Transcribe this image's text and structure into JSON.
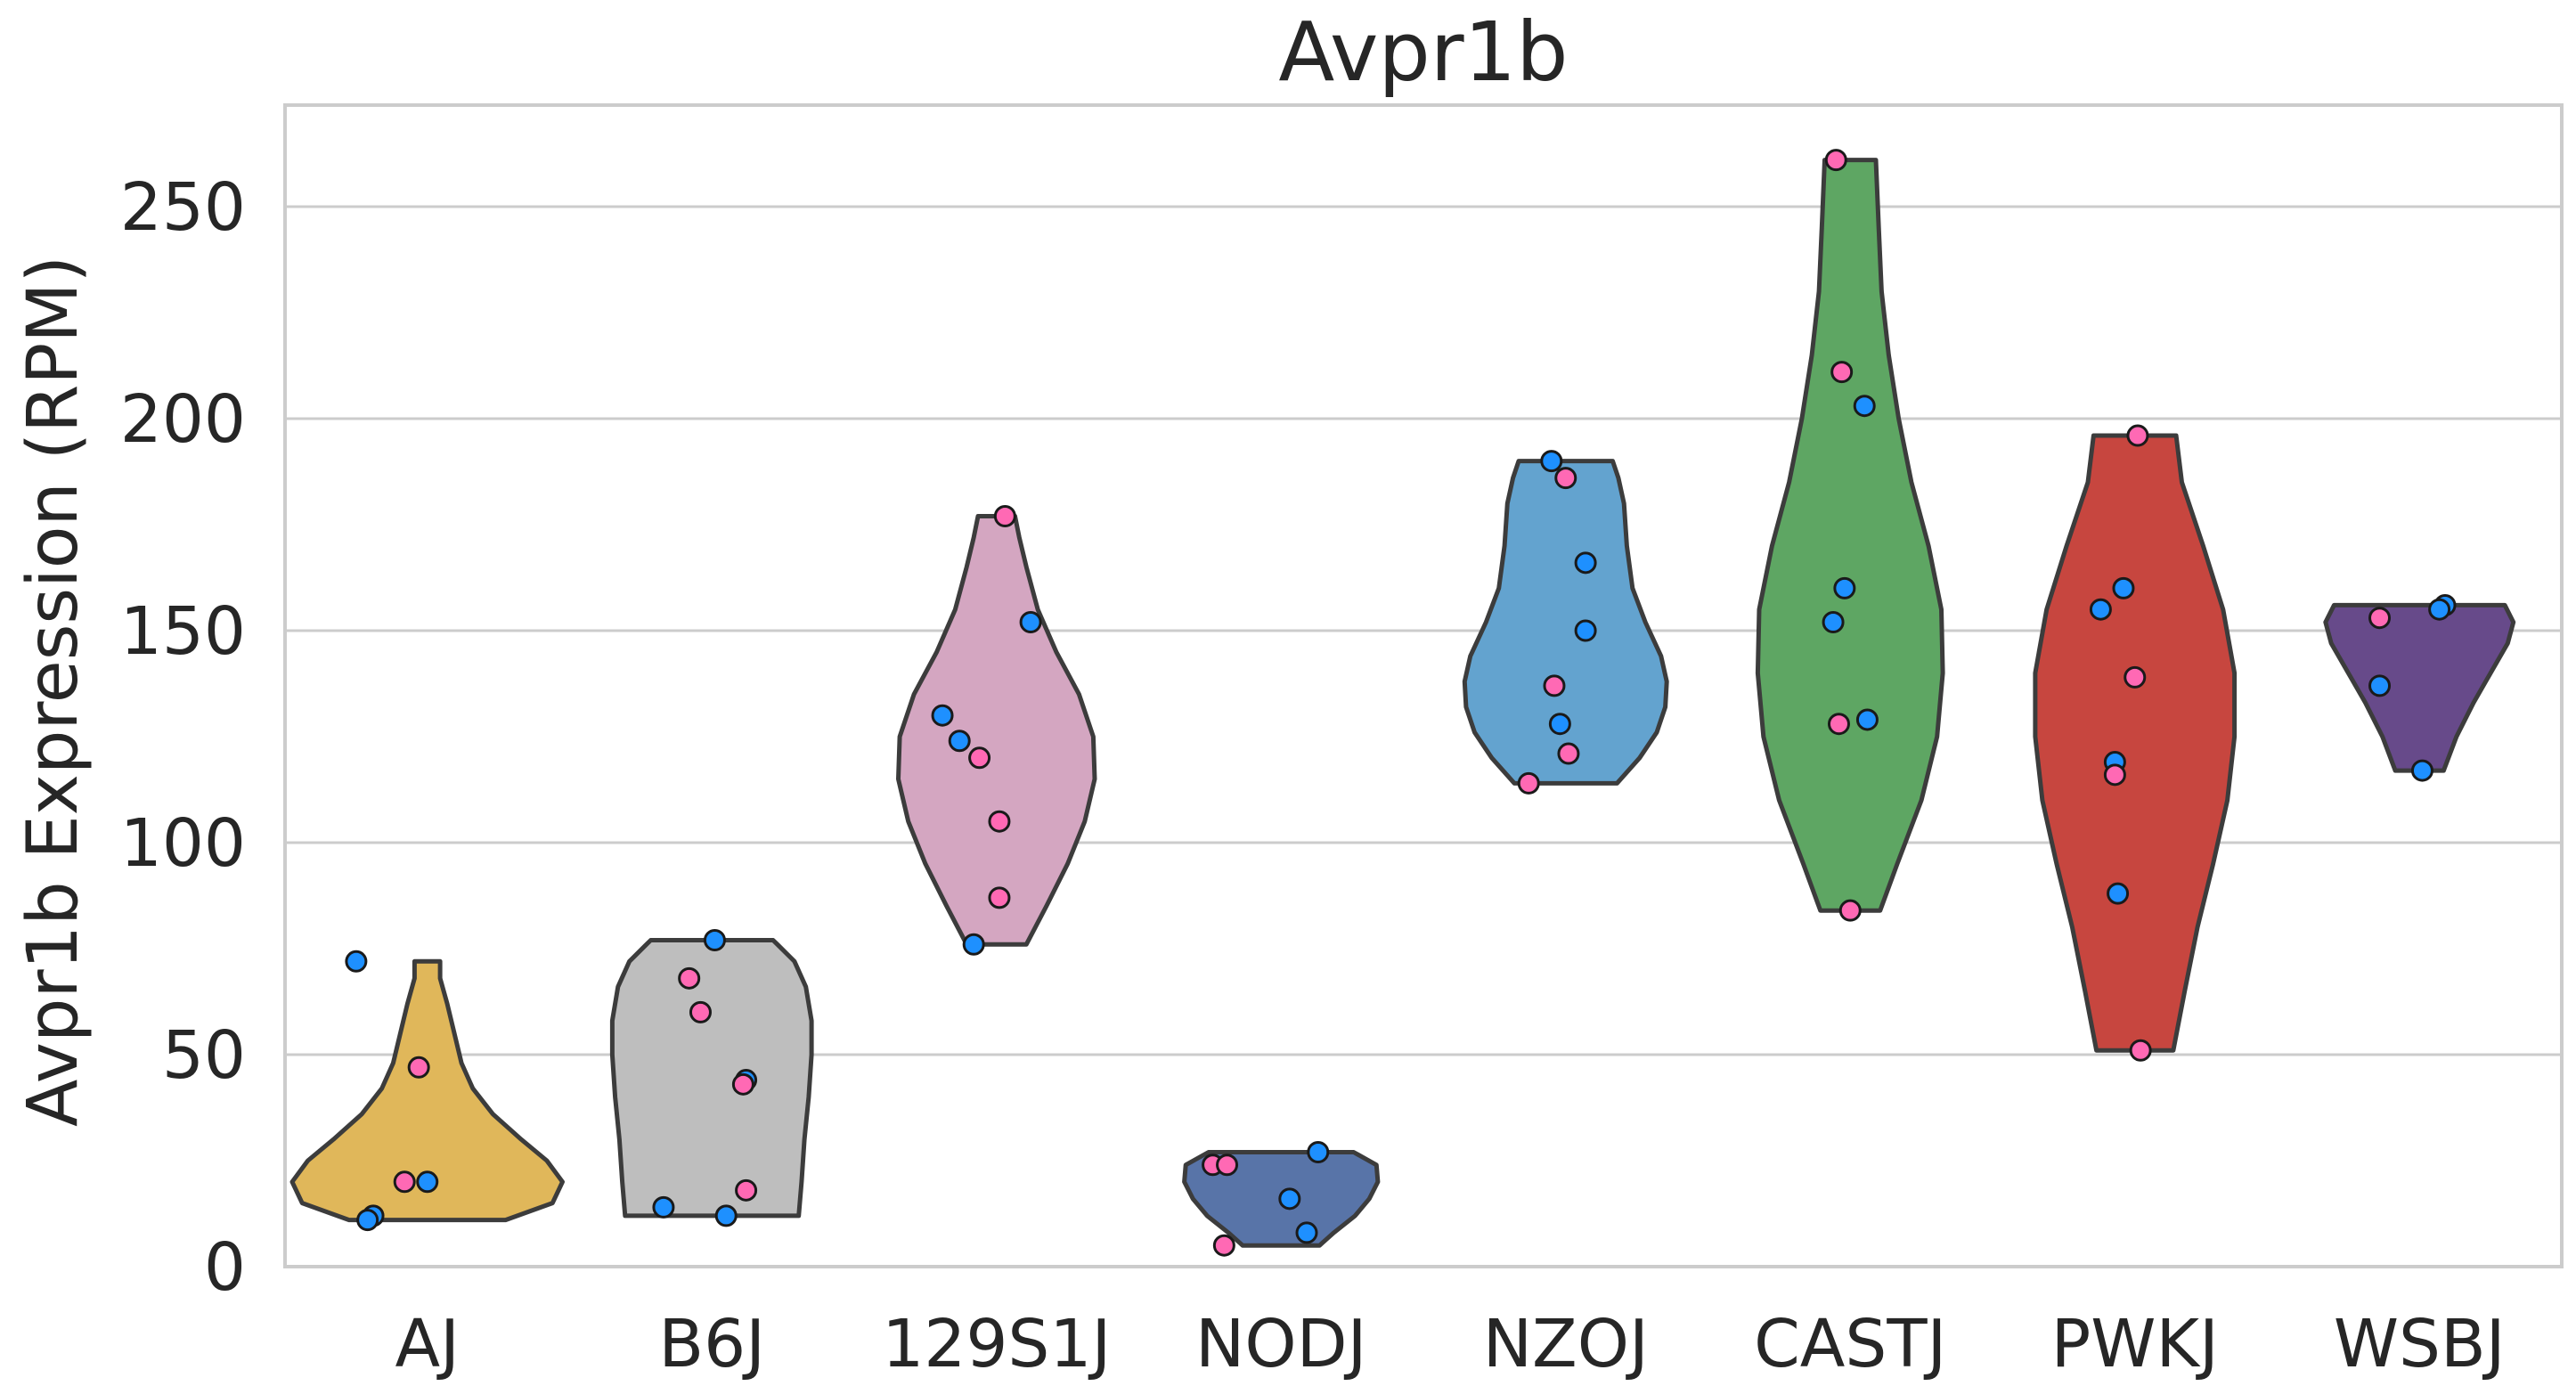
{
  "chart_data": {
    "type": "violin",
    "title": "Avpr1b",
    "ylabel": "Avpr1b Expression (RPM)",
    "xlabel": "",
    "ylim": [
      0,
      274
    ],
    "yticks": [
      0,
      50,
      100,
      150,
      200,
      250
    ],
    "grid": true,
    "legend": "none",
    "colors": {
      "female_point": "#ff69b4",
      "male_point": "#1e90ff"
    },
    "categories": [
      {
        "name": "AJ",
        "color": "#e0b75a",
        "min": 11,
        "max": 72,
        "shape": [
          [
            11,
            0.55
          ],
          [
            15,
            0.88
          ],
          [
            20,
            0.95
          ],
          [
            25,
            0.84
          ],
          [
            30,
            0.66
          ],
          [
            36,
            0.46
          ],
          [
            42,
            0.32
          ],
          [
            48,
            0.24
          ],
          [
            55,
            0.19
          ],
          [
            62,
            0.14
          ],
          [
            68,
            0.09
          ],
          [
            72,
            0.09
          ]
        ],
        "points": [
          {
            "dx": -0.25,
            "y": 72,
            "group": "male"
          },
          {
            "dx": -0.03,
            "y": 47,
            "group": "female"
          },
          {
            "dx": -0.08,
            "y": 20,
            "group": "female"
          },
          {
            "dx": 0.0,
            "y": 20,
            "group": "male"
          },
          {
            "dx": -0.19,
            "y": 12,
            "group": "male"
          },
          {
            "dx": -0.21,
            "y": 11,
            "group": "male"
          }
        ]
      },
      {
        "name": "B6J",
        "color": "#bebebe",
        "min": 12,
        "max": 77,
        "shape": [
          [
            12,
            0.61
          ],
          [
            20,
            0.63
          ],
          [
            30,
            0.65
          ],
          [
            40,
            0.68
          ],
          [
            50,
            0.7
          ],
          [
            58,
            0.7
          ],
          [
            66,
            0.66
          ],
          [
            72,
            0.58
          ],
          [
            76,
            0.46
          ],
          [
            77,
            0.43
          ]
        ],
        "points": [
          {
            "dx": 0.01,
            "y": 77,
            "group": "male"
          },
          {
            "dx": -0.08,
            "y": 68,
            "group": "female"
          },
          {
            "dx": -0.04,
            "y": 60,
            "group": "female"
          },
          {
            "dx": 0.12,
            "y": 44,
            "group": "male"
          },
          {
            "dx": 0.11,
            "y": 43,
            "group": "female"
          },
          {
            "dx": 0.12,
            "y": 18,
            "group": "female"
          },
          {
            "dx": -0.17,
            "y": 14,
            "group": "male"
          },
          {
            "dx": 0.05,
            "y": 12,
            "group": "male"
          }
        ]
      },
      {
        "name": "129S1J",
        "color": "#d4a6c1",
        "min": 76,
        "max": 177,
        "shape": [
          [
            76,
            0.21
          ],
          [
            85,
            0.35
          ],
          [
            95,
            0.5
          ],
          [
            105,
            0.62
          ],
          [
            115,
            0.69
          ],
          [
            125,
            0.68
          ],
          [
            135,
            0.58
          ],
          [
            145,
            0.42
          ],
          [
            155,
            0.29
          ],
          [
            165,
            0.21
          ],
          [
            172,
            0.16
          ],
          [
            177,
            0.13
          ]
        ],
        "points": [
          {
            "dx": 0.03,
            "y": 177,
            "group": "female"
          },
          {
            "dx": 0.12,
            "y": 152,
            "group": "male"
          },
          {
            "dx": -0.19,
            "y": 130,
            "group": "male"
          },
          {
            "dx": -0.13,
            "y": 124,
            "group": "male"
          },
          {
            "dx": -0.06,
            "y": 120,
            "group": "female"
          },
          {
            "dx": 0.01,
            "y": 105,
            "group": "female"
          },
          {
            "dx": 0.01,
            "y": 87,
            "group": "female"
          },
          {
            "dx": -0.08,
            "y": 76,
            "group": "male"
          }
        ]
      },
      {
        "name": "NODJ",
        "color": "#5874a8",
        "min": 5,
        "max": 27,
        "shape": [
          [
            5,
            0.27
          ],
          [
            8,
            0.37
          ],
          [
            12,
            0.52
          ],
          [
            16,
            0.62
          ],
          [
            20,
            0.68
          ],
          [
            24,
            0.67
          ],
          [
            27,
            0.51
          ]
        ],
        "points": [
          {
            "dx": 0.13,
            "y": 27,
            "group": "male"
          },
          {
            "dx": -0.24,
            "y": 24,
            "group": "female"
          },
          {
            "dx": -0.19,
            "y": 24,
            "group": "female"
          },
          {
            "dx": 0.03,
            "y": 16,
            "group": "male"
          },
          {
            "dx": 0.09,
            "y": 8,
            "group": "male"
          },
          {
            "dx": -0.2,
            "y": 5,
            "group": "female"
          }
        ]
      },
      {
        "name": "NZOJ",
        "color": "#63a3cf",
        "min": 114,
        "max": 190,
        "shape": [
          [
            114,
            0.36
          ],
          [
            120,
            0.52
          ],
          [
            126,
            0.64
          ],
          [
            132,
            0.7
          ],
          [
            138,
            0.71
          ],
          [
            144,
            0.67
          ],
          [
            152,
            0.56
          ],
          [
            160,
            0.47
          ],
          [
            170,
            0.43
          ],
          [
            180,
            0.41
          ],
          [
            186,
            0.37
          ],
          [
            190,
            0.33
          ]
        ],
        "points": [
          {
            "dx": -0.05,
            "y": 190,
            "group": "male"
          },
          {
            "dx": 0.0,
            "y": 186,
            "group": "female"
          },
          {
            "dx": 0.07,
            "y": 166,
            "group": "male"
          },
          {
            "dx": 0.07,
            "y": 150,
            "group": "male"
          },
          {
            "dx": -0.04,
            "y": 137,
            "group": "female"
          },
          {
            "dx": -0.02,
            "y": 128,
            "group": "male"
          },
          {
            "dx": 0.01,
            "y": 121,
            "group": "female"
          },
          {
            "dx": -0.13,
            "y": 114,
            "group": "female"
          }
        ]
      },
      {
        "name": "CASTJ",
        "color": "#5ea663",
        "min": 84,
        "max": 261,
        "shape": [
          [
            84,
            0.21
          ],
          [
            95,
            0.33
          ],
          [
            110,
            0.5
          ],
          [
            125,
            0.61
          ],
          [
            140,
            0.65
          ],
          [
            155,
            0.64
          ],
          [
            170,
            0.55
          ],
          [
            185,
            0.43
          ],
          [
            200,
            0.34
          ],
          [
            215,
            0.27
          ],
          [
            230,
            0.22
          ],
          [
            245,
            0.2
          ],
          [
            261,
            0.18
          ]
        ],
        "points": [
          {
            "dx": -0.05,
            "y": 261,
            "group": "female"
          },
          {
            "dx": -0.03,
            "y": 211,
            "group": "female"
          },
          {
            "dx": 0.05,
            "y": 203,
            "group": "male"
          },
          {
            "dx": -0.02,
            "y": 160,
            "group": "male"
          },
          {
            "dx": -0.06,
            "y": 152,
            "group": "male"
          },
          {
            "dx": 0.06,
            "y": 129,
            "group": "male"
          },
          {
            "dx": -0.04,
            "y": 128,
            "group": "female"
          },
          {
            "dx": 0.0,
            "y": 84,
            "group": "female"
          }
        ]
      },
      {
        "name": "PWKJ",
        "color": "#c7463f",
        "min": 51,
        "max": 196,
        "shape": [
          [
            51,
            0.27
          ],
          [
            65,
            0.35
          ],
          [
            80,
            0.44
          ],
          [
            95,
            0.55
          ],
          [
            110,
            0.65
          ],
          [
            125,
            0.7
          ],
          [
            140,
            0.7
          ],
          [
            155,
            0.62
          ],
          [
            170,
            0.48
          ],
          [
            185,
            0.33
          ],
          [
            196,
            0.29
          ]
        ],
        "points": [
          {
            "dx": 0.01,
            "y": 196,
            "group": "female"
          },
          {
            "dx": -0.04,
            "y": 160,
            "group": "male"
          },
          {
            "dx": -0.12,
            "y": 155,
            "group": "male"
          },
          {
            "dx": 0.0,
            "y": 139,
            "group": "female"
          },
          {
            "dx": -0.07,
            "y": 119,
            "group": "male"
          },
          {
            "dx": -0.07,
            "y": 116,
            "group": "female"
          },
          {
            "dx": -0.06,
            "y": 88,
            "group": "male"
          },
          {
            "dx": 0.02,
            "y": 51,
            "group": "female"
          }
        ]
      },
      {
        "name": "WSBJ",
        "color": "#674a8a",
        "min": 117,
        "max": 156,
        "shape": [
          [
            117,
            0.17
          ],
          [
            125,
            0.26
          ],
          [
            133,
            0.38
          ],
          [
            140,
            0.5
          ],
          [
            147,
            0.62
          ],
          [
            152,
            0.66
          ],
          [
            156,
            0.6
          ]
        ],
        "points": [
          {
            "dx": 0.09,
            "y": 156,
            "group": "male"
          },
          {
            "dx": 0.07,
            "y": 155,
            "group": "male"
          },
          {
            "dx": -0.14,
            "y": 153,
            "group": "female"
          },
          {
            "dx": -0.14,
            "y": 137,
            "group": "male"
          },
          {
            "dx": 0.01,
            "y": 117,
            "group": "male"
          }
        ]
      }
    ]
  }
}
